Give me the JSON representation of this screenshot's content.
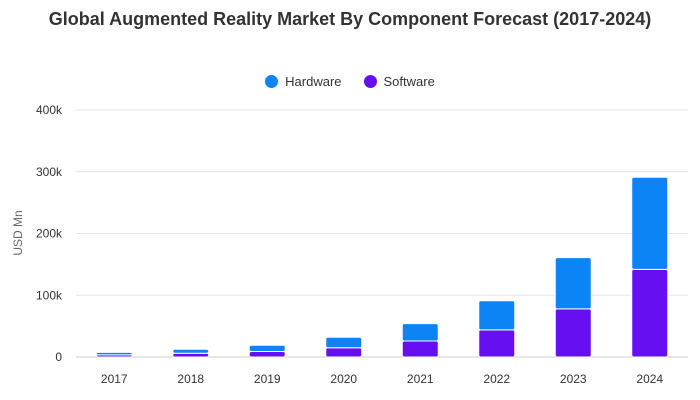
{
  "chart_data": {
    "type": "bar",
    "stacked": true,
    "title": "Global Augmented Reality Market By Component Forecast (2017-2024)",
    "xlabel": "",
    "ylabel": "USD Mn",
    "categories": [
      "2017",
      "2018",
      "2019",
      "2020",
      "2021",
      "2022",
      "2023",
      "2024"
    ],
    "series": [
      {
        "name": "Software",
        "color": "#6610f2",
        "values": [
          3500,
          6000,
          9000,
          15000,
          26000,
          44000,
          78000,
          142000
        ]
      },
      {
        "name": "Hardware",
        "color": "#0d84f5",
        "values": [
          4000,
          6500,
          10000,
          17000,
          28000,
          47000,
          83000,
          149000
        ]
      }
    ],
    "ylim": [
      0,
      400000
    ],
    "yticks": [
      0,
      100000,
      200000,
      300000,
      400000
    ],
    "ytick_labels": [
      "0",
      "100k",
      "200k",
      "300k",
      "400k"
    ],
    "grid": true,
    "legend_position": "top-center"
  },
  "legend": [
    {
      "label": "Hardware",
      "color": "#0d84f5"
    },
    {
      "label": "Software",
      "color": "#6610f2"
    }
  ]
}
